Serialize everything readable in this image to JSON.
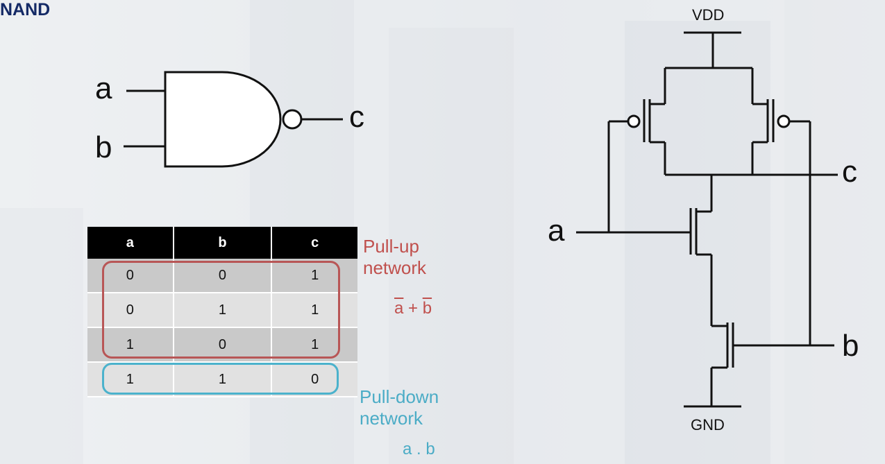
{
  "title": "NAND",
  "gate": {
    "input_a": "a",
    "input_b": "b",
    "output": "c"
  },
  "truth_table": {
    "headers": [
      "a",
      "b",
      "c"
    ],
    "rows": [
      [
        "0",
        "0",
        "1"
      ],
      [
        "0",
        "1",
        "1"
      ],
      [
        "1",
        "0",
        "1"
      ],
      [
        "1",
        "1",
        "0"
      ]
    ]
  },
  "annotations": {
    "pull_up_line1": "Pull-up",
    "pull_up_line2": "network",
    "pull_up_expr_a": "a",
    "pull_up_expr_op": " + ",
    "pull_up_expr_b": "b",
    "pull_down_line1": "Pull-down",
    "pull_down_line2": "network",
    "pull_down_expr": "a . b"
  },
  "circuit": {
    "vdd": "VDD",
    "gnd": "GND",
    "a": "a",
    "b": "b",
    "c": "c"
  },
  "colors": {
    "title": "#142a66",
    "pull_up": "#c0504d",
    "pull_down": "#4bacc6"
  }
}
